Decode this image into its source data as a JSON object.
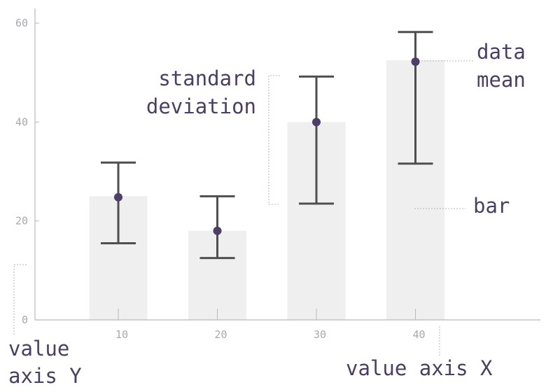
{
  "chart_data": {
    "type": "bar",
    "categories": [
      "10",
      "20",
      "30",
      "40"
    ],
    "values": [
      25,
      18,
      40,
      52.5
    ],
    "means": [
      24.8,
      18,
      40,
      52.2
    ],
    "error_upper": [
      31.8,
      25,
      49.2,
      58.2
    ],
    "error_lower": [
      15.5,
      12.5,
      23.5,
      31.6
    ],
    "y_ticks": [
      "0",
      "20",
      "40",
      "60"
    ],
    "ylim": [
      0,
      63
    ],
    "grid": false,
    "annotations": {
      "std_line1": "standard",
      "std_line2": "deviation",
      "mean_line1": "data",
      "mean_line2": "mean",
      "bar": "bar",
      "y_line1": "value",
      "y_line2": "axis Y",
      "x_axis": "value axis X"
    },
    "colors": {
      "bar": "#efefef",
      "error_bar": "#4f4f4f",
      "mean_marker": "#4d3f66",
      "axis": "#b8b8c0"
    }
  }
}
